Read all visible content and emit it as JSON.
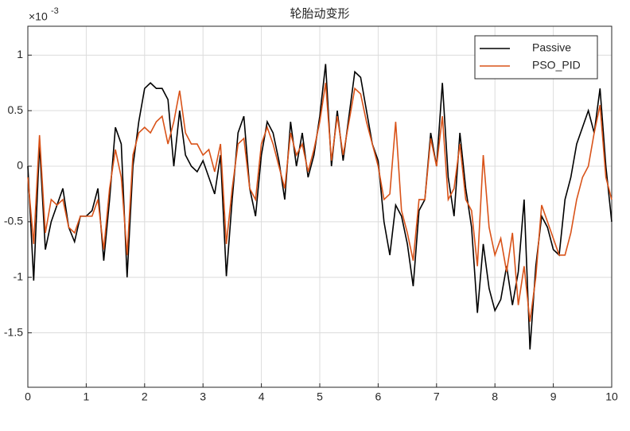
{
  "chart_data": {
    "type": "line",
    "title": "轮胎动变形",
    "y_multiplier_base": "×10",
    "y_multiplier_exponent": "-3",
    "x": [
      0,
      0.1,
      0.2,
      0.3,
      0.4,
      0.5,
      0.6,
      0.7,
      0.8,
      0.9,
      1,
      1.1,
      1.2,
      1.3,
      1.4,
      1.5,
      1.6,
      1.7,
      1.8,
      1.9,
      2,
      2.1,
      2.2,
      2.3,
      2.4,
      2.5,
      2.6,
      2.7,
      2.8,
      2.9,
      3,
      3.1,
      3.2,
      3.3,
      3.4,
      3.5,
      3.6,
      3.7,
      3.8,
      3.9,
      4,
      4.1,
      4.2,
      4.3,
      4.4,
      4.5,
      4.6,
      4.7,
      4.8,
      4.9,
      5,
      5.1,
      5.2,
      5.3,
      5.4,
      5.5,
      5.6,
      5.7,
      5.8,
      5.9,
      6,
      6.1,
      6.2,
      6.3,
      6.4,
      6.5,
      6.6,
      6.7,
      6.8,
      6.9,
      7,
      7.1,
      7.2,
      7.3,
      7.4,
      7.5,
      7.6,
      7.7,
      7.8,
      7.9,
      8,
      8.1,
      8.2,
      8.3,
      8.4,
      8.5,
      8.6,
      8.7,
      8.8,
      8.9,
      9,
      9.1,
      9.2,
      9.3,
      9.4,
      9.5,
      9.6,
      9.7,
      9.8,
      9.9,
      10
    ],
    "series": [
      {
        "name": "Passive",
        "color": "#000000",
        "values": [
          0,
          -1.03,
          0.2,
          -0.75,
          -0.5,
          -0.35,
          -0.2,
          -0.55,
          -0.68,
          -0.45,
          -0.45,
          -0.4,
          -0.2,
          -0.85,
          -0.3,
          0.35,
          0.2,
          -1.0,
          0,
          0.4,
          0.7,
          0.75,
          0.7,
          0.7,
          0.6,
          0,
          0.5,
          0.1,
          0,
          -0.05,
          0.05,
          -0.1,
          -0.25,
          0.1,
          -0.99,
          -0.3,
          0.3,
          0.45,
          -0.2,
          -0.45,
          0.1,
          0.4,
          0.3,
          0.05,
          -0.3,
          0.4,
          0,
          0.3,
          -0.1,
          0.1,
          0.45,
          0.92,
          0,
          0.5,
          0.05,
          0.45,
          0.85,
          0.8,
          0.5,
          0.2,
          0.05,
          -0.5,
          -0.8,
          -0.35,
          -0.45,
          -0.7,
          -1.08,
          -0.4,
          -0.3,
          0.3,
          0,
          0.75,
          -0.1,
          -0.45,
          0.3,
          -0.2,
          -0.55,
          -1.32,
          -0.7,
          -1.1,
          -1.3,
          -1.2,
          -0.9,
          -1.25,
          -0.95,
          -0.3,
          -1.65,
          -0.9,
          -0.45,
          -0.55,
          -0.75,
          -0.8,
          -0.3,
          -0.1,
          0.2,
          0.35,
          0.5,
          0.3,
          0.7,
          0,
          -0.5
        ]
      },
      {
        "name": "PSO_PID",
        "color": "#d95319",
        "values": [
          -0.1,
          -0.7,
          0.28,
          -0.6,
          -0.3,
          -0.35,
          -0.3,
          -0.55,
          -0.6,
          -0.45,
          -0.45,
          -0.45,
          -0.3,
          -0.75,
          -0.2,
          0.15,
          -0.1,
          -0.8,
          0.1,
          0.3,
          0.35,
          0.3,
          0.4,
          0.45,
          0.2,
          0.4,
          0.68,
          0.3,
          0.2,
          0.2,
          0.1,
          0.15,
          -0.05,
          0.2,
          -0.7,
          -0.2,
          0.2,
          0.25,
          -0.2,
          -0.3,
          0.2,
          0.35,
          0.2,
          0,
          -0.2,
          0.3,
          0.1,
          0.2,
          -0.05,
          0.15,
          0.4,
          0.75,
          0.05,
          0.45,
          0.1,
          0.4,
          0.7,
          0.65,
          0.4,
          0.2,
          0,
          -0.3,
          -0.25,
          0.4,
          -0.4,
          -0.6,
          -0.85,
          -0.3,
          -0.3,
          0.25,
          0,
          0.45,
          -0.3,
          -0.2,
          0.2,
          -0.3,
          -0.4,
          -0.9,
          0.1,
          -0.55,
          -0.8,
          -0.65,
          -0.95,
          -0.6,
          -1.25,
          -0.9,
          -1.4,
          -1.0,
          -0.35,
          -0.5,
          -0.65,
          -0.8,
          -0.8,
          -0.6,
          -0.3,
          -0.1,
          0,
          0.3,
          0.55,
          -0.1,
          -0.3
        ]
      }
    ],
    "xlim": [
      0,
      10
    ],
    "xticks": [
      0,
      1,
      2,
      3,
      4,
      5,
      6,
      7,
      8,
      9,
      10
    ],
    "ylim": [
      -1.99,
      1.26
    ],
    "yticks": [
      -1.5,
      -1,
      -0.5,
      0,
      0.5,
      1
    ],
    "grid": true,
    "legend": "top-right"
  }
}
